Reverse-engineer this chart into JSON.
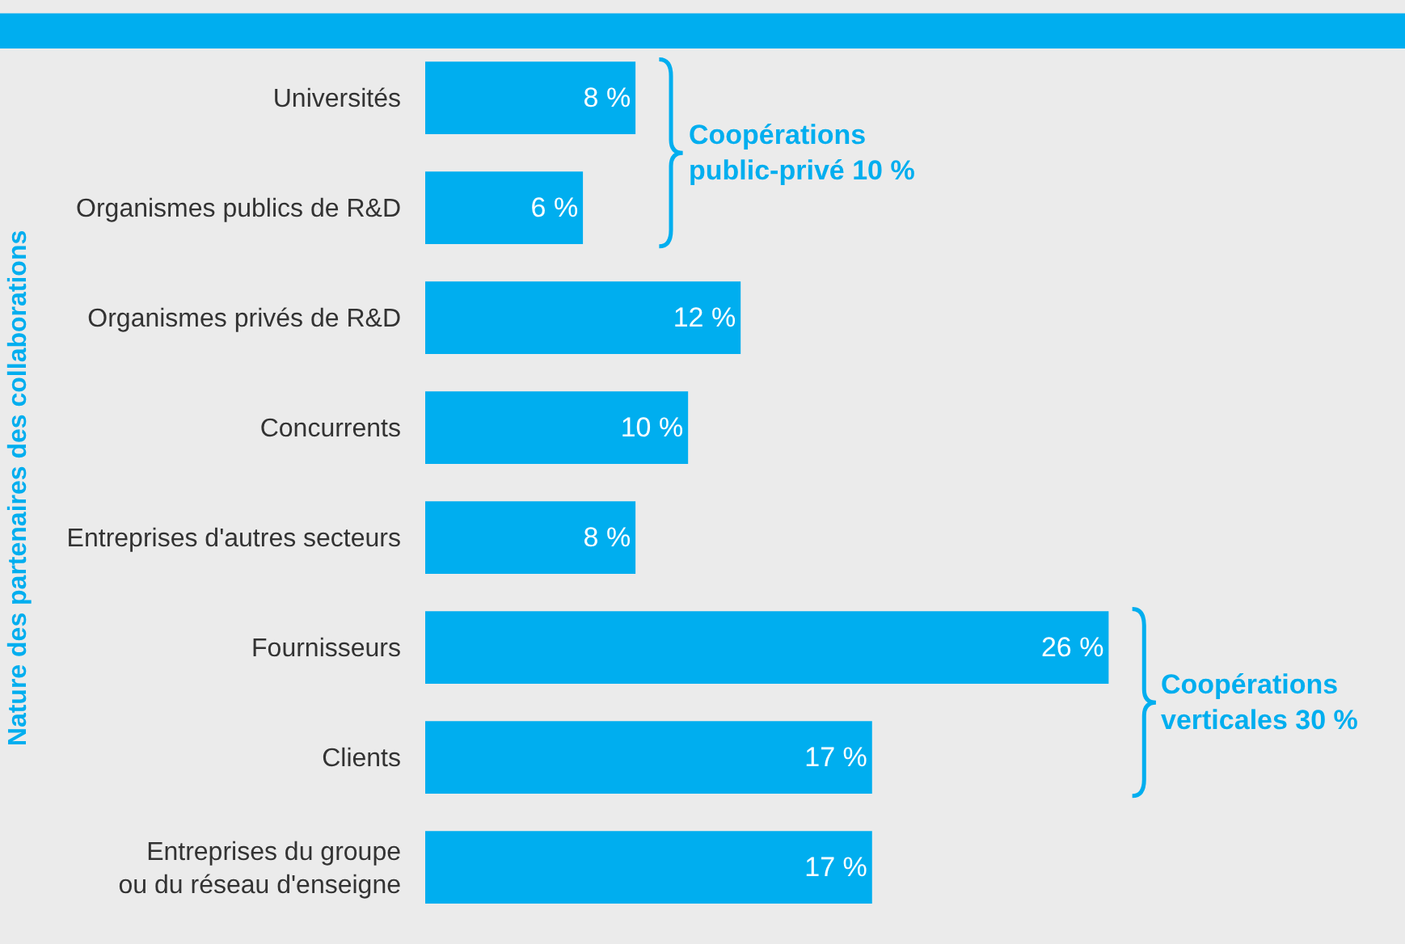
{
  "chart_data": {
    "type": "bar",
    "orientation": "horizontal",
    "ylabel": "Nature des partenaires des collaborations",
    "categories": [
      "Universités",
      "Organismes publics de R&D",
      "Organismes privés de R&D",
      "Concurrents",
      "Entreprises d'autres secteurs",
      "Fournisseurs",
      "Clients",
      "Entreprises du groupe\nou du réseau d'enseigne"
    ],
    "values": [
      8,
      6,
      12,
      10,
      8,
      26,
      17,
      17
    ],
    "value_labels": [
      "8 %",
      "6 %",
      "12 %",
      "10 %",
      "8 %",
      "26 %",
      "17 %",
      "17 %"
    ],
    "color": "#00aeef",
    "grid": false,
    "legend": false,
    "annotations": [
      "Coopérations\npublic-privé 10 %",
      "Coopérations\nverticales 30 %"
    ]
  }
}
